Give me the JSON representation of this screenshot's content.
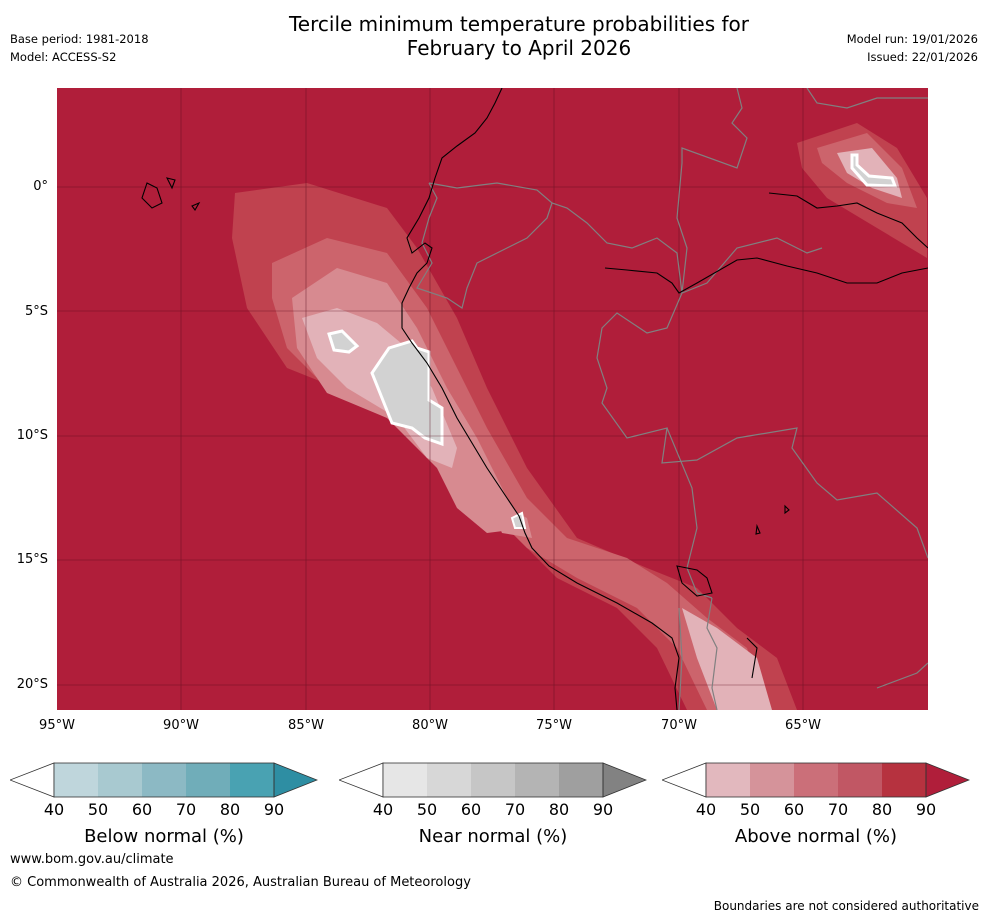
{
  "header": {
    "title_line1": "Tercile minimum temperature probabilities for",
    "title_line2": "February to April 2026",
    "base_period": "Base period: 1981-2018",
    "model": "Model: ACCESS-S2",
    "model_run": "Model run: 19/01/2026",
    "issued": "Issued: 22/01/2026"
  },
  "map": {
    "lat_labels": [
      "0°",
      "5°S",
      "10°S",
      "15°S",
      "20°S"
    ],
    "lon_labels": [
      "95°W",
      "90°W",
      "85°W",
      "80°W",
      "75°W",
      "70°W",
      "65°W"
    ],
    "colors": {
      "above_90": "#b01e3a",
      "above_80": "#c0424f",
      "above_70": "#cc646c",
      "above_60": "#d78a90",
      "above_50": "#e2b2b8",
      "near_50": "#d2d2d2",
      "coast": "#000000",
      "border": "#808080"
    }
  },
  "colorbars": [
    {
      "name": "below",
      "title": "Below normal (%)",
      "ticks": [
        "40",
        "50",
        "60",
        "70",
        "80",
        "90"
      ],
      "colors": [
        "#bfd6dc",
        "#a8c9d0",
        "#8cb9c4",
        "#70adb9",
        "#49a2b2",
        "#2e8ea3"
      ]
    },
    {
      "name": "near",
      "title": "Near normal (%)",
      "ticks": [
        "40",
        "50",
        "60",
        "70",
        "80",
        "90"
      ],
      "colors": [
        "#e6e6e6",
        "#d7d7d7",
        "#c6c6c6",
        "#b4b4b4",
        "#9f9f9f",
        "#828282"
      ]
    },
    {
      "name": "above",
      "title": "Above normal (%)",
      "ticks": [
        "40",
        "50",
        "60",
        "70",
        "80",
        "90"
      ],
      "colors": [
        "#e2b8be",
        "#d5939a",
        "#cb6f79",
        "#c15764",
        "#b6323f",
        "#b01e3a"
      ]
    }
  ],
  "footer": {
    "url": "www.bom.gov.au/climate",
    "copyright": "© Commonwealth of Australia 2026, Australian Bureau of Meteorology",
    "disclaimer": "Boundaries are not considered authoritative"
  }
}
